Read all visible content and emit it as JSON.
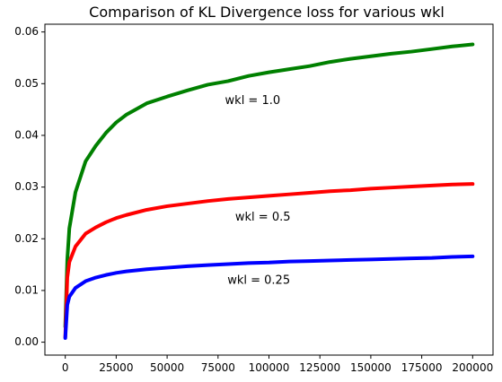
{
  "chart_data": {
    "type": "line",
    "title": "Comparison of KL Divergence loss for various wkl",
    "xlabel": "",
    "ylabel": "",
    "xlim": [
      -10000,
      210000
    ],
    "ylim": [
      -0.0025,
      0.0615
    ],
    "x_ticks": [
      0,
      25000,
      50000,
      75000,
      100000,
      125000,
      150000,
      175000,
      200000
    ],
    "x_tick_labels": [
      "0",
      "25000",
      "50000",
      "75000",
      "100000",
      "125000",
      "150000",
      "175000",
      "200000"
    ],
    "y_ticks": [
      0.0,
      0.01,
      0.02,
      0.03,
      0.04,
      0.05,
      0.06
    ],
    "y_tick_labels": [
      "0.00",
      "0.01",
      "0.02",
      "0.03",
      "0.04",
      "0.05",
      "0.06"
    ],
    "grid": false,
    "legend": "none",
    "series": [
      {
        "color": "#008000",
        "x": [
          0,
          1000,
          2000,
          5000,
          10000,
          15000,
          20000,
          25000,
          30000,
          40000,
          50000,
          60000,
          70000,
          80000,
          90000,
          100000,
          110000,
          120000,
          130000,
          140000,
          150000,
          160000,
          170000,
          180000,
          190000,
          200000
        ],
        "values": [
          0.003,
          0.016,
          0.022,
          0.029,
          0.035,
          0.038,
          0.0405,
          0.0425,
          0.044,
          0.0462,
          0.0475,
          0.0487,
          0.0498,
          0.0505,
          0.0515,
          0.0522,
          0.0528,
          0.0534,
          0.0542,
          0.0548,
          0.0553,
          0.0558,
          0.0562,
          0.0567,
          0.0572,
          0.0576
        ]
      },
      {
        "color": "#ff0000",
        "x": [
          0,
          1000,
          2000,
          5000,
          10000,
          15000,
          20000,
          25000,
          30000,
          40000,
          50000,
          60000,
          70000,
          80000,
          90000,
          100000,
          110000,
          120000,
          130000,
          140000,
          150000,
          160000,
          170000,
          180000,
          190000,
          200000
        ],
        "values": [
          0.001,
          0.0125,
          0.0155,
          0.0185,
          0.021,
          0.0222,
          0.0232,
          0.024,
          0.0246,
          0.0256,
          0.0263,
          0.0268,
          0.0273,
          0.0277,
          0.028,
          0.0283,
          0.0286,
          0.0289,
          0.0292,
          0.0294,
          0.0297,
          0.0299,
          0.0301,
          0.0303,
          0.0305,
          0.0306
        ]
      },
      {
        "color": "#0000ff",
        "x": [
          0,
          1000,
          2000,
          5000,
          10000,
          15000,
          20000,
          25000,
          30000,
          40000,
          50000,
          60000,
          70000,
          80000,
          90000,
          100000,
          110000,
          120000,
          130000,
          140000,
          150000,
          160000,
          170000,
          180000,
          190000,
          200000
        ],
        "values": [
          0.0008,
          0.0072,
          0.0088,
          0.0105,
          0.0118,
          0.0125,
          0.013,
          0.0134,
          0.0137,
          0.0141,
          0.0144,
          0.0147,
          0.0149,
          0.0151,
          0.0153,
          0.0154,
          0.0156,
          0.0157,
          0.0158,
          0.0159,
          0.016,
          0.0161,
          0.0162,
          0.0163,
          0.0165,
          0.0166
        ]
      }
    ],
    "annotations": [
      {
        "text": "wkl = 1.0",
        "x": 92000,
        "y": 0.0467
      },
      {
        "text": "wkl = 0.5",
        "x": 97000,
        "y": 0.0241
      },
      {
        "text": "wkl = 0.25",
        "x": 95000,
        "y": 0.0119
      }
    ]
  }
}
